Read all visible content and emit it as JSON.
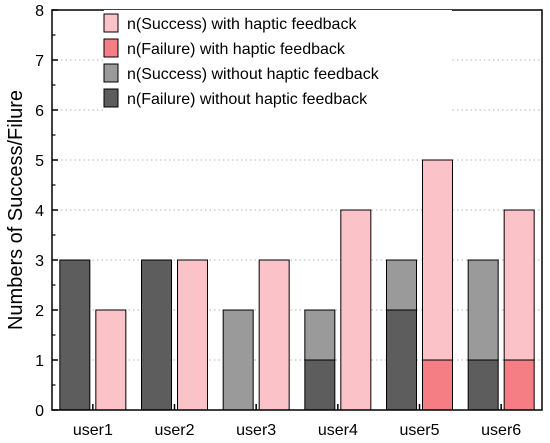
{
  "chart_data": {
    "type": "bar",
    "ylabel": "Numbers of Success/Filure",
    "xlabel": "",
    "ylim": [
      0,
      8
    ],
    "yticks": [
      0,
      1,
      2,
      3,
      4,
      5,
      6,
      7,
      8
    ],
    "grid": "horizontal-dotted",
    "legend_position": "top-center",
    "categories": [
      "user1",
      "user2",
      "user3",
      "user4",
      "user5",
      "user6"
    ],
    "groups": [
      {
        "key": "without",
        "stack": [
          {
            "series": "n(Failure) without haptic feedback",
            "values": [
              3,
              3,
              0,
              1,
              2,
              1
            ]
          },
          {
            "series": "n(Success) without haptic feedback",
            "values": [
              0,
              0,
              2,
              1,
              1,
              2
            ]
          }
        ]
      },
      {
        "key": "with",
        "stack": [
          {
            "series": "n(Failure) with haptic feedback",
            "values": [
              0,
              0,
              0,
              0,
              1,
              1
            ]
          },
          {
            "series": "n(Success) with haptic feedback",
            "values": [
              2,
              3,
              3,
              4,
              4,
              3
            ]
          }
        ]
      }
    ],
    "series": [
      {
        "name": "n(Success) with haptic feedback",
        "color": "#fbc2c7"
      },
      {
        "name": "n(Failure) with haptic feedback",
        "color": "#f47e83"
      },
      {
        "name": "n(Success) without haptic feedback",
        "color": "#9a9a9a"
      },
      {
        "name": "n(Failure) without haptic feedback",
        "color": "#5d5d5d"
      }
    ]
  }
}
